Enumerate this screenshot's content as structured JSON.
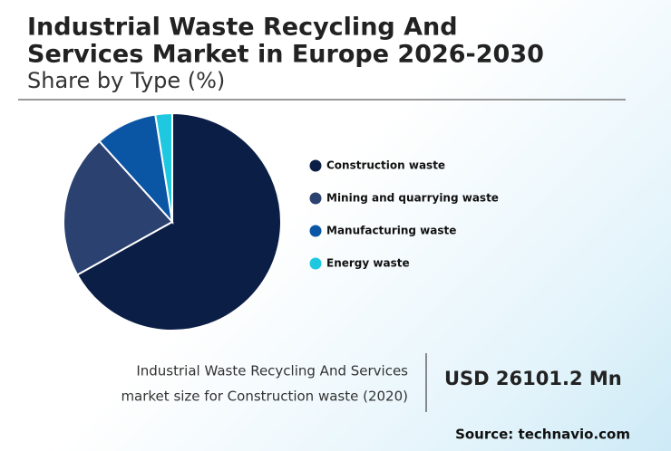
{
  "chart_data": {
    "type": "pie",
    "title": [
      "Industrial Waste Recycling And",
      "Services Market in Europe 2026-2030"
    ],
    "subtitle": "Share by Type (%)",
    "categories": [
      "Construction waste",
      "Mining and quarrying waste",
      "Manufacturing waste",
      "Energy waste"
    ],
    "values": [
      66.9,
      21.4,
      9.2,
      2.5
    ],
    "colors": [
      "#0a1e46",
      "#2b4170",
      "#0b56a4",
      "#1ec8e0"
    ],
    "legend": "right"
  },
  "summary": {
    "description": [
      "Industrial Waste Recycling And Services",
      "market size for Construction waste (2020)"
    ],
    "value": "USD 26101.2 Mn",
    "source": "Source: technavio.com"
  }
}
